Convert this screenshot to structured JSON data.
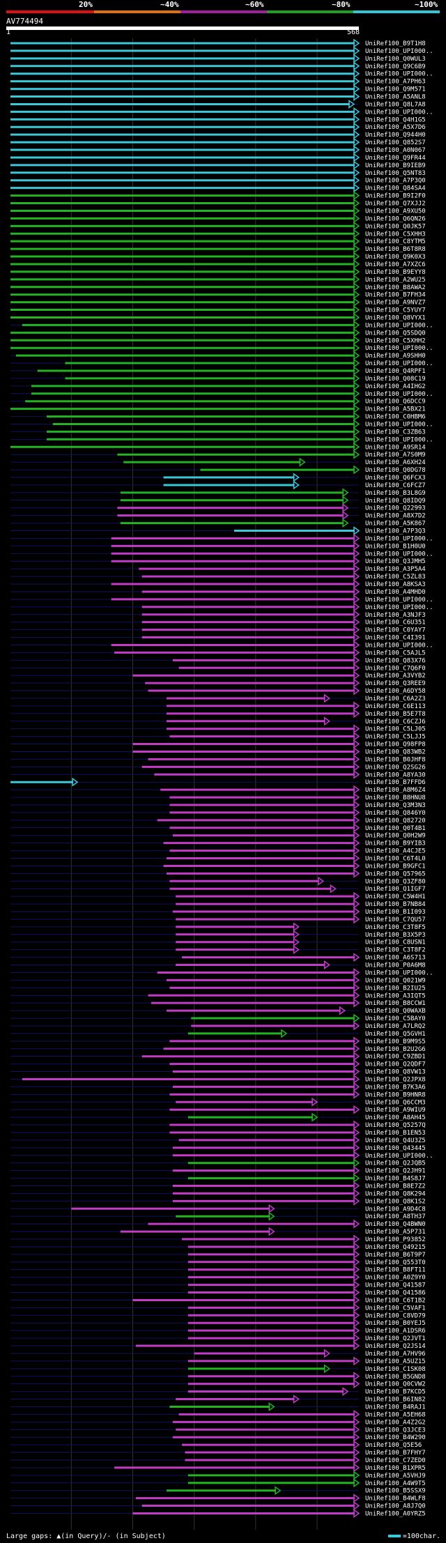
{
  "legend": {
    "labels": [
      "20%",
      "~40%",
      "~60%",
      "~80%",
      "~100%"
    ],
    "colors": [
      "#e01010",
      "#e07010",
      "#a020a0",
      "#20a020",
      "#30c8d8"
    ]
  },
  "query": {
    "id": "AV774494",
    "start": "1",
    "end": "568"
  },
  "footer": {
    "gaps_label": "Large gaps: ▲(in Query)/- (in Subject)",
    "scale_label": "=100char."
  },
  "hits": [
    {
      "id": "UniRef100_B9T1H8",
      "c": "cyan",
      "s": 1,
      "e": 568
    },
    {
      "id": "UniRef100_UPI000..",
      "c": "cyan",
      "s": 1,
      "e": 568
    },
    {
      "id": "UniRef100_Q0WUL3",
      "c": "cyan",
      "s": 1,
      "e": 568
    },
    {
      "id": "UniRef100_Q9C6B9",
      "c": "cyan",
      "s": 1,
      "e": 568
    },
    {
      "id": "UniRef100_UPI000..",
      "c": "cyan",
      "s": 1,
      "e": 568
    },
    {
      "id": "UniRef100_A7PH63",
      "c": "cyan",
      "s": 1,
      "e": 568
    },
    {
      "id": "UniRef100_Q9M571",
      "c": "cyan",
      "s": 1,
      "e": 568
    },
    {
      "id": "UniRef100_A5ANL8",
      "c": "cyan",
      "s": 1,
      "e": 568
    },
    {
      "id": "UniRef100_Q8L7A8",
      "c": "cyan",
      "s": 1,
      "e": 560
    },
    {
      "id": "UniRef100_UPI000..",
      "c": "cyan",
      "s": 1,
      "e": 568
    },
    {
      "id": "UniRef100_Q4H1G5",
      "c": "cyan",
      "s": 1,
      "e": 568
    },
    {
      "id": "UniRef100_A5X7D6",
      "c": "cyan",
      "s": 1,
      "e": 568
    },
    {
      "id": "UniRef100_Q944H0",
      "c": "cyan",
      "s": 1,
      "e": 568
    },
    {
      "id": "UniRef100_Q852S7",
      "c": "cyan",
      "s": 1,
      "e": 568
    },
    {
      "id": "UniRef100_A0N067",
      "c": "cyan",
      "s": 1,
      "e": 568
    },
    {
      "id": "UniRef100_Q9FR44",
      "c": "cyan",
      "s": 1,
      "e": 568
    },
    {
      "id": "UniRef100_B9IEB9",
      "c": "cyan",
      "s": 1,
      "e": 568
    },
    {
      "id": "UniRef100_Q5NT83",
      "c": "cyan",
      "s": 1,
      "e": 568
    },
    {
      "id": "UniRef100_A7P3Q0",
      "c": "cyan",
      "s": 1,
      "e": 568
    },
    {
      "id": "UniRef100_Q84SA4",
      "c": "cyan",
      "s": 1,
      "e": 568
    },
    {
      "id": "UniRef100_B9I2F0",
      "c": "green",
      "s": 1,
      "e": 568
    },
    {
      "id": "UniRef100_Q7XJJ2",
      "c": "green",
      "s": 1,
      "e": 568
    },
    {
      "id": "UniRef100_A9XU50",
      "c": "green",
      "s": 1,
      "e": 568
    },
    {
      "id": "UniRef100_Q6QN26",
      "c": "green",
      "s": 1,
      "e": 568
    },
    {
      "id": "UniRef100_Q0JK57",
      "c": "green",
      "s": 1,
      "e": 568
    },
    {
      "id": "UniRef100_C5XHH3",
      "c": "green",
      "s": 1,
      "e": 568
    },
    {
      "id": "UniRef100_C8YTM5",
      "c": "green",
      "s": 1,
      "e": 568
    },
    {
      "id": "UniRef100_B6T8R8",
      "c": "green",
      "s": 1,
      "e": 568
    },
    {
      "id": "UniRef100_Q9K0X3",
      "c": "green",
      "s": 1,
      "e": 568
    },
    {
      "id": "UniRef100_A7XZC6",
      "c": "green",
      "s": 1,
      "e": 568
    },
    {
      "id": "UniRef100_B9EYY8",
      "c": "green",
      "s": 1,
      "e": 568
    },
    {
      "id": "UniRef100_A2WU25",
      "c": "green",
      "s": 1,
      "e": 568
    },
    {
      "id": "UniRef100_B8AWA2",
      "c": "green",
      "s": 1,
      "e": 568
    },
    {
      "id": "UniRef100_B7FH34",
      "c": "green",
      "s": 1,
      "e": 568
    },
    {
      "id": "UniRef100_A9NVZ7",
      "c": "green",
      "s": 1,
      "e": 568
    },
    {
      "id": "UniRef100_C5YUY7",
      "c": "green",
      "s": 1,
      "e": 568
    },
    {
      "id": "UniRef100_Q8VYX1",
      "c": "green",
      "s": 1,
      "e": 568
    },
    {
      "id": "UniRef100_UPI000..",
      "c": "green",
      "s": 20,
      "e": 568
    },
    {
      "id": "UniRef100_Q5SDQ0",
      "c": "green",
      "s": 1,
      "e": 568
    },
    {
      "id": "UniRef100_C5XHH2",
      "c": "green",
      "s": 1,
      "e": 568
    },
    {
      "id": "UniRef100_UPI000..",
      "c": "green",
      "s": 1,
      "e": 568
    },
    {
      "id": "UniRef100_A9SHH0",
      "c": "green",
      "s": 10,
      "e": 568
    },
    {
      "id": "UniRef100_UPI000..",
      "c": "green",
      "s": 90,
      "e": 568
    },
    {
      "id": "UniRef100_Q4RPF1",
      "c": "green",
      "s": 45,
      "e": 568
    },
    {
      "id": "UniRef100_Q08C19",
      "c": "green",
      "s": 90,
      "e": 568
    },
    {
      "id": "UniRef100_A4IHG2",
      "c": "green",
      "s": 35,
      "e": 568
    },
    {
      "id": "UniRef100_UPI000..",
      "c": "green",
      "s": 35,
      "e": 568
    },
    {
      "id": "UniRef100_Q6DCC9",
      "c": "green",
      "s": 25,
      "e": 568
    },
    {
      "id": "UniRef100_A5BX21",
      "c": "green",
      "s": 1,
      "e": 568
    },
    {
      "id": "UniRef100_C0HBM6",
      "c": "green",
      "s": 60,
      "e": 568
    },
    {
      "id": "UniRef100_UPI000..",
      "c": "green",
      "s": 70,
      "e": 568
    },
    {
      "id": "UniRef100_C3ZB63",
      "c": "green",
      "s": 60,
      "e": 568
    },
    {
      "id": "UniRef100_UPI000..",
      "c": "green",
      "s": 60,
      "e": 568
    },
    {
      "id": "UniRef100_A9SR14",
      "c": "green",
      "s": 1,
      "e": 568
    },
    {
      "id": "UniRef100_A7S0M9",
      "c": "green",
      "s": 175,
      "e": 568
    },
    {
      "id": "UniRef100_A6XH24",
      "c": "green",
      "s": 185,
      "e": 480
    },
    {
      "id": "UniRef100_Q0DG78",
      "c": "green",
      "s": 310,
      "e": 568
    },
    {
      "id": "UniRef100_Q6FCX3",
      "c": "cyan",
      "s": 250,
      "e": 470
    },
    {
      "id": "UniRef100_C6FCZ7",
      "c": "cyan",
      "s": 250,
      "e": 470
    },
    {
      "id": "UniRef100_B3L8G9",
      "c": "green",
      "s": 180,
      "e": 550
    },
    {
      "id": "UniRef100_Q8IDQ9",
      "c": "green",
      "s": 180,
      "e": 550
    },
    {
      "id": "UniRef100_Q22993",
      "c": "magenta",
      "s": 175,
      "e": 550
    },
    {
      "id": "UniRef100_A8X7D2",
      "c": "magenta",
      "s": 175,
      "e": 550
    },
    {
      "id": "UniRef100_A5K867",
      "c": "green",
      "s": 180,
      "e": 550
    },
    {
      "id": "UniRef100_A7P3Q3",
      "c": "cyan",
      "s": 365,
      "e": 568
    },
    {
      "id": "UniRef100_UPI000..",
      "c": "magenta",
      "s": 165,
      "e": 568
    },
    {
      "id": "UniRef100_B1H0U0",
      "c": "magenta",
      "s": 165,
      "e": 568
    },
    {
      "id": "UniRef100_UPI000..",
      "c": "magenta",
      "s": 165,
      "e": 568
    },
    {
      "id": "UniRef100_Q3JMH5",
      "c": "magenta",
      "s": 165,
      "e": 568
    },
    {
      "id": "UniRef100_A3P5A4",
      "c": "magenta",
      "s": 210,
      "e": 568
    },
    {
      "id": "UniRef100_C5ZL83",
      "c": "magenta",
      "s": 215,
      "e": 568
    },
    {
      "id": "UniRef100_A8KSA3",
      "c": "magenta",
      "s": 165,
      "e": 568
    },
    {
      "id": "UniRef100_A4MHD0",
      "c": "magenta",
      "s": 215,
      "e": 568
    },
    {
      "id": "UniRef100_UPI000..",
      "c": "magenta",
      "s": 165,
      "e": 568
    },
    {
      "id": "UniRef100_UPI000..",
      "c": "magenta",
      "s": 215,
      "e": 568
    },
    {
      "id": "UniRef100_A3NJF3",
      "c": "magenta",
      "s": 215,
      "e": 568
    },
    {
      "id": "UniRef100_C6U351",
      "c": "magenta",
      "s": 215,
      "e": 568
    },
    {
      "id": "UniRef100_C0YAY7",
      "c": "magenta",
      "s": 215,
      "e": 568
    },
    {
      "id": "UniRef100_C4I391",
      "c": "magenta",
      "s": 215,
      "e": 568
    },
    {
      "id": "UniRef100_UPI000..",
      "c": "magenta",
      "s": 165,
      "e": 568
    },
    {
      "id": "UniRef100_C5AJL5",
      "c": "magenta",
      "s": 170,
      "e": 568
    },
    {
      "id": "UniRef100_Q83X76",
      "c": "magenta",
      "s": 265,
      "e": 568
    },
    {
      "id": "UniRef100_C7Q6F0",
      "c": "magenta",
      "s": 275,
      "e": 568
    },
    {
      "id": "UniRef100_A3VYB2",
      "c": "magenta",
      "s": 200,
      "e": 568
    },
    {
      "id": "UniRef100_Q3REE9",
      "c": "magenta",
      "s": 220,
      "e": 568
    },
    {
      "id": "UniRef100_A6DY58",
      "c": "magenta",
      "s": 225,
      "e": 568
    },
    {
      "id": "UniRef100_C6A2Z3",
      "c": "magenta",
      "s": 255,
      "e": 520
    },
    {
      "id": "UniRef100_C6E113",
      "c": "magenta",
      "s": 255,
      "e": 568
    },
    {
      "id": "UniRef100_B5E7T8",
      "c": "magenta",
      "s": 255,
      "e": 568
    },
    {
      "id": "UniRef100_C6CZJ6",
      "c": "magenta",
      "s": 255,
      "e": 520
    },
    {
      "id": "UniRef100_C5LJ05",
      "c": "magenta",
      "s": 255,
      "e": 568
    },
    {
      "id": "UniRef100_C5LJJ5",
      "c": "magenta",
      "s": 260,
      "e": 568
    },
    {
      "id": "UniRef100_Q98FP8",
      "c": "magenta",
      "s": 200,
      "e": 568
    },
    {
      "id": "UniRef100_Q83WB2",
      "c": "magenta",
      "s": 200,
      "e": 568
    },
    {
      "id": "UniRef100_B0JHF8",
      "c": "magenta",
      "s": 225,
      "e": 568
    },
    {
      "id": "UniRef100_Q2SG26",
      "c": "magenta",
      "s": 215,
      "e": 568
    },
    {
      "id": "UniRef100_A8YA30",
      "c": "magenta",
      "s": 235,
      "e": 568
    },
    {
      "id": "UniRef100_B7FFD6",
      "c": "cyan",
      "s": 1,
      "e": 110
    },
    {
      "id": "UniRef100_A8M6Z4",
      "c": "magenta",
      "s": 245,
      "e": 568
    },
    {
      "id": "UniRef100_B8HNU8",
      "c": "magenta",
      "s": 260,
      "e": 568
    },
    {
      "id": "UniRef100_Q3M3N3",
      "c": "magenta",
      "s": 260,
      "e": 568
    },
    {
      "id": "UniRef100_Q846Y0",
      "c": "magenta",
      "s": 260,
      "e": 568
    },
    {
      "id": "UniRef100_Q82720",
      "c": "magenta",
      "s": 240,
      "e": 568
    },
    {
      "id": "UniRef100_Q0T4B1",
      "c": "magenta",
      "s": 260,
      "e": 568
    },
    {
      "id": "UniRef100_Q0H2W9",
      "c": "magenta",
      "s": 265,
      "e": 568
    },
    {
      "id": "UniRef100_B9YIB3",
      "c": "magenta",
      "s": 250,
      "e": 568
    },
    {
      "id": "UniRef100_A4CJE5",
      "c": "magenta",
      "s": 260,
      "e": 568
    },
    {
      "id": "UniRef100_C6T4L0",
      "c": "magenta",
      "s": 255,
      "e": 568
    },
    {
      "id": "UniRef100_B9GFC1",
      "c": "magenta",
      "s": 250,
      "e": 568
    },
    {
      "id": "UniRef100_Q57965",
      "c": "magenta",
      "s": 255,
      "e": 568
    },
    {
      "id": "UniRef100_Q3ZF80",
      "c": "magenta",
      "s": 260,
      "e": 510
    },
    {
      "id": "UniRef100_Q1IGF7",
      "c": "magenta",
      "s": 260,
      "e": 530
    },
    {
      "id": "UniRef100_C5W4H1",
      "c": "magenta",
      "s": 270,
      "e": 568
    },
    {
      "id": "UniRef100_B7NB84",
      "c": "magenta",
      "s": 270,
      "e": 568
    },
    {
      "id": "UniRef100_B1I093",
      "c": "magenta",
      "s": 265,
      "e": 568
    },
    {
      "id": "UniRef100_C7QU57",
      "c": "magenta",
      "s": 270,
      "e": 568
    },
    {
      "id": "UniRef100_C3T8F5",
      "c": "magenta",
      "s": 270,
      "e": 470
    },
    {
      "id": "UniRef100_B3X5P3",
      "c": "magenta",
      "s": 270,
      "e": 470
    },
    {
      "id": "UniRef100_C8USN1",
      "c": "magenta",
      "s": 270,
      "e": 470
    },
    {
      "id": "UniRef100_C3T8F2",
      "c": "magenta",
      "s": 270,
      "e": 470
    },
    {
      "id": "UniRef100_A6S713",
      "c": "magenta",
      "s": 280,
      "e": 568
    },
    {
      "id": "UniRef100_P0A6M8",
      "c": "magenta",
      "s": 270,
      "e": 520
    },
    {
      "id": "UniRef100_UPI000..",
      "c": "magenta",
      "s": 240,
      "e": 568
    },
    {
      "id": "UniRef100_Q021W9",
      "c": "magenta",
      "s": 255,
      "e": 568
    },
    {
      "id": "UniRef100_B2IU25",
      "c": "magenta",
      "s": 260,
      "e": 568
    },
    {
      "id": "UniRef100_A3IQT5",
      "c": "magenta",
      "s": 225,
      "e": 568
    },
    {
      "id": "UniRef100_B8CCW1",
      "c": "magenta",
      "s": 230,
      "e": 568
    },
    {
      "id": "UniRef100_Q0WAXB",
      "c": "magenta",
      "s": 255,
      "e": 545
    },
    {
      "id": "UniRef100_C5BAY0",
      "c": "green",
      "s": 295,
      "e": 568
    },
    {
      "id": "UniRef100_A7LRQ2",
      "c": "magenta",
      "s": 295,
      "e": 568
    },
    {
      "id": "UniRef100_Q5GVH1",
      "c": "green",
      "s": 290,
      "e": 450
    },
    {
      "id": "UniRef100_B9M9S5",
      "c": "magenta",
      "s": 260,
      "e": 568
    },
    {
      "id": "UniRef100_B2U2G6",
      "c": "magenta",
      "s": 250,
      "e": 568
    },
    {
      "id": "UniRef100_C9ZBD1",
      "c": "magenta",
      "s": 215,
      "e": 568
    },
    {
      "id": "UniRef100_Q2QDF7",
      "c": "magenta",
      "s": 260,
      "e": 568
    },
    {
      "id": "UniRef100_Q8VW13",
      "c": "magenta",
      "s": 265,
      "e": 568
    },
    {
      "id": "UniRef100_Q2JPX8",
      "c": "magenta",
      "s": 20,
      "e": 568
    },
    {
      "id": "UniRef100_B7K3A6",
      "c": "magenta",
      "s": 265,
      "e": 568
    },
    {
      "id": "UniRef100_B9HNR8",
      "c": "magenta",
      "s": 260,
      "e": 568
    },
    {
      "id": "UniRef100_Q6CCM3",
      "c": "magenta",
      "s": 270,
      "e": 500
    },
    {
      "id": "UniRef100_A9WIU9",
      "c": "magenta",
      "s": 260,
      "e": 568
    },
    {
      "id": "UniRef100_A8AH45",
      "c": "green",
      "s": 290,
      "e": 500
    },
    {
      "id": "UniRef100_Q5257Q",
      "c": "magenta",
      "s": 260,
      "e": 568
    },
    {
      "id": "UniRef100_B1EN53",
      "c": "magenta",
      "s": 260,
      "e": 568
    },
    {
      "id": "UniRef100_Q4U3Z5",
      "c": "magenta",
      "s": 275,
      "e": 568
    },
    {
      "id": "UniRef100_Q43445",
      "c": "magenta",
      "s": 265,
      "e": 568
    },
    {
      "id": "UniRef100_UPI000..",
      "c": "magenta",
      "s": 265,
      "e": 568
    },
    {
      "id": "UniRef100_Q2JQB5",
      "c": "green",
      "s": 290,
      "e": 568
    },
    {
      "id": "UniRef100_Q2JH91",
      "c": "magenta",
      "s": 265,
      "e": 568
    },
    {
      "id": "UniRef100_B4S8J7",
      "c": "green",
      "s": 290,
      "e": 568
    },
    {
      "id": "UniRef100_B8E7Z2",
      "c": "magenta",
      "s": 265,
      "e": 568
    },
    {
      "id": "UniRef100_Q8K294",
      "c": "magenta",
      "s": 265,
      "e": 568
    },
    {
      "id": "UniRef100_Q8K1S2",
      "c": "magenta",
      "s": 265,
      "e": 568
    },
    {
      "id": "UniRef100_A9D4C8",
      "c": "magenta",
      "s": 100,
      "e": 430
    },
    {
      "id": "UniRef100_A8TH37",
      "c": "green",
      "s": 270,
      "e": 430
    },
    {
      "id": "UniRef100_Q4BWN0",
      "c": "magenta",
      "s": 225,
      "e": 568
    },
    {
      "id": "UniRef100_A5P731",
      "c": "magenta",
      "s": 180,
      "e": 430
    },
    {
      "id": "UniRef100_P93852",
      "c": "magenta",
      "s": 280,
      "e": 568
    },
    {
      "id": "UniRef100_Q49215",
      "c": "magenta",
      "s": 290,
      "e": 568
    },
    {
      "id": "UniRef100_B6T9P7",
      "c": "magenta",
      "s": 290,
      "e": 568
    },
    {
      "id": "UniRef100_Q553T0",
      "c": "magenta",
      "s": 290,
      "e": 568
    },
    {
      "id": "UniRef100_B8FT11",
      "c": "magenta",
      "s": 290,
      "e": 568
    },
    {
      "id": "UniRef100_A0Z9Y0",
      "c": "magenta",
      "s": 290,
      "e": 568
    },
    {
      "id": "UniRef100_Q41587",
      "c": "magenta",
      "s": 290,
      "e": 568
    },
    {
      "id": "UniRef100_Q41586",
      "c": "magenta",
      "s": 290,
      "e": 568
    },
    {
      "id": "UniRef100_C6T1B2",
      "c": "magenta",
      "s": 200,
      "e": 568
    },
    {
      "id": "UniRef100_C5VAF1",
      "c": "magenta",
      "s": 290,
      "e": 568
    },
    {
      "id": "UniRef100_C8VD79",
      "c": "magenta",
      "s": 290,
      "e": 568
    },
    {
      "id": "UniRef100_B0YEJ5",
      "c": "magenta",
      "s": 290,
      "e": 568
    },
    {
      "id": "UniRef100_A1DSR6",
      "c": "magenta",
      "s": 290,
      "e": 568
    },
    {
      "id": "UniRef100_Q2JVT1",
      "c": "magenta",
      "s": 290,
      "e": 568
    },
    {
      "id": "UniRef100_Q2JS14",
      "c": "magenta",
      "s": 205,
      "e": 568
    },
    {
      "id": "UniRef100_A7HV96",
      "c": "magenta",
      "s": 300,
      "e": 520
    },
    {
      "id": "UniRef100_A5UZ15",
      "c": "magenta",
      "s": 290,
      "e": 568
    },
    {
      "id": "UniRef100_C1SK08",
      "c": "green",
      "s": 290,
      "e": 520
    },
    {
      "id": "UniRef100_B5GND8",
      "c": "magenta",
      "s": 290,
      "e": 568
    },
    {
      "id": "UniRef100_Q0CVW2",
      "c": "magenta",
      "s": 290,
      "e": 568
    },
    {
      "id": "UniRef100_B7KCD5",
      "c": "magenta",
      "s": 290,
      "e": 550
    },
    {
      "id": "UniRef100_B6IN82",
      "c": "magenta",
      "s": 270,
      "e": 470
    },
    {
      "id": "UniRef100_B4RAJ1",
      "c": "green",
      "s": 260,
      "e": 430
    },
    {
      "id": "UniRef100_A5EH68",
      "c": "magenta",
      "s": 275,
      "e": 568
    },
    {
      "id": "UniRef100_A4Z2G2",
      "c": "magenta",
      "s": 265,
      "e": 568
    },
    {
      "id": "UniRef100_Q3JCE3",
      "c": "magenta",
      "s": 270,
      "e": 568
    },
    {
      "id": "UniRef100_B4W290",
      "c": "magenta",
      "s": 265,
      "e": 568
    },
    {
      "id": "UniRef100_Q5E56",
      "c": "magenta",
      "s": 280,
      "e": 568
    },
    {
      "id": "UniRef100_B7FHY7",
      "c": "magenta",
      "s": 285,
      "e": 568
    },
    {
      "id": "UniRef100_C7ZED0",
      "c": "magenta",
      "s": 285,
      "e": 568
    },
    {
      "id": "UniRef100_B1XPR5",
      "c": "magenta",
      "s": 170,
      "e": 568
    },
    {
      "id": "UniRef100_A5VHJ9",
      "c": "green",
      "s": 290,
      "e": 568
    },
    {
      "id": "UniRef100_A4W9T5",
      "c": "green",
      "s": 290,
      "e": 568
    },
    {
      "id": "UniRef100_B5SSX9",
      "c": "green",
      "s": 255,
      "e": 440
    },
    {
      "id": "UniRef100_B4WLF8",
      "c": "magenta",
      "s": 205,
      "e": 568
    },
    {
      "id": "UniRef100_A8J7Q0",
      "c": "magenta",
      "s": 215,
      "e": 568
    },
    {
      "id": "UniRef100_A0YRZ5",
      "c": "magenta",
      "s": 200,
      "e": 568
    }
  ]
}
